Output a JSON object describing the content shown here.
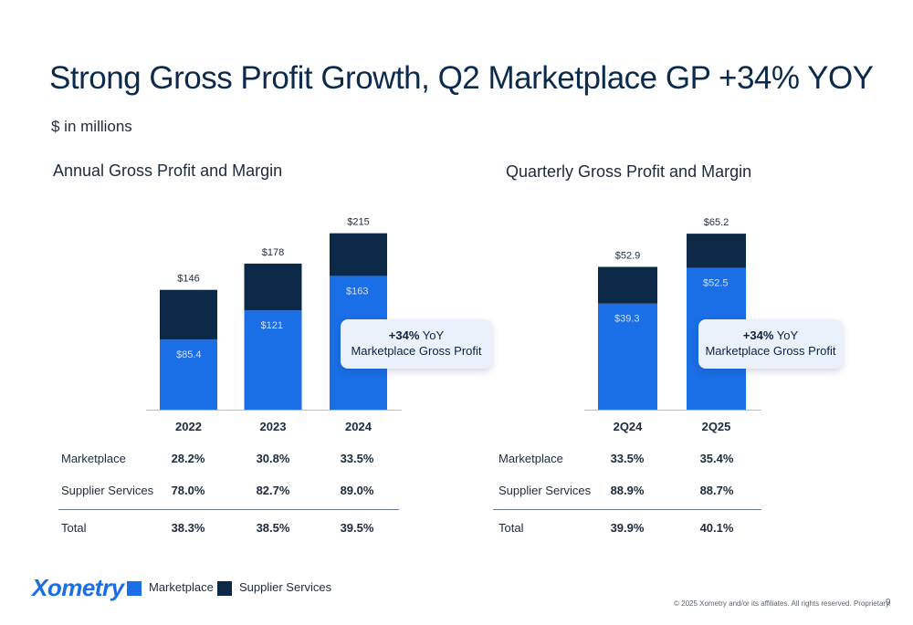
{
  "title": "Strong Gross Profit Growth, Q2 Marketplace GP +34% YOY",
  "subtitle": "$ in millions",
  "colors": {
    "marketplace": "#1a6ee6",
    "supplier_services": "#0c2a47"
  },
  "chart_data": [
    {
      "type": "bar",
      "stacked": true,
      "title": "Annual Gross Profit and Margin",
      "categories": [
        "2022",
        "2023",
        "2024"
      ],
      "series": [
        {
          "name": "Marketplace",
          "values": [
            85.4,
            121,
            163
          ],
          "labels": [
            "$85.4",
            "$121",
            "$163"
          ]
        },
        {
          "name": "Supplier Services",
          "values": [
            60.6,
            57,
            52
          ]
        }
      ],
      "totals": [
        146,
        178,
        215
      ],
      "total_labels": [
        "$146",
        "$178",
        "$215"
      ],
      "callout": {
        "bold": "+34%",
        "text1": " YoY",
        "text2": "Marketplace Gross Profit"
      },
      "margin_table": {
        "rows": [
          {
            "label": "Marketplace",
            "values": [
              "28.2%",
              "30.8%",
              "33.5%"
            ]
          },
          {
            "label": "Supplier Services",
            "values": [
              "78.0%",
              "82.7%",
              "89.0%"
            ]
          },
          {
            "label": "Total",
            "values": [
              "38.3%",
              "38.5%",
              "39.5%"
            ]
          }
        ]
      }
    },
    {
      "type": "bar",
      "stacked": true,
      "title": "Quarterly Gross Profit and Margin",
      "categories": [
        "2Q24",
        "2Q25"
      ],
      "series": [
        {
          "name": "Marketplace",
          "values": [
            39.3,
            52.5
          ],
          "labels": [
            "$39.3",
            "$52.5"
          ]
        },
        {
          "name": "Supplier Services",
          "values": [
            13.6,
            12.7
          ]
        }
      ],
      "totals": [
        52.9,
        65.2
      ],
      "total_labels": [
        "$52.9",
        "$65.2"
      ],
      "callout": {
        "bold": "+34%",
        "text1": " YoY",
        "text2": "Marketplace Gross Profit"
      },
      "margin_table": {
        "rows": [
          {
            "label": "Marketplace",
            "values": [
              "33.5%",
              "35.4%"
            ]
          },
          {
            "label": "Supplier Services",
            "values": [
              "88.9%",
              "88.7%"
            ]
          },
          {
            "label": "Total",
            "values": [
              "39.9%",
              "40.1%"
            ]
          }
        ]
      }
    }
  ],
  "legend": {
    "marketplace": "Marketplace",
    "supplier_services": "Supplier Services"
  },
  "footer": {
    "logo": "Xometry",
    "copyright": "© 2025 Xometry and/or its affiliates. All rights reserved. Proprietary.",
    "page": "9"
  }
}
